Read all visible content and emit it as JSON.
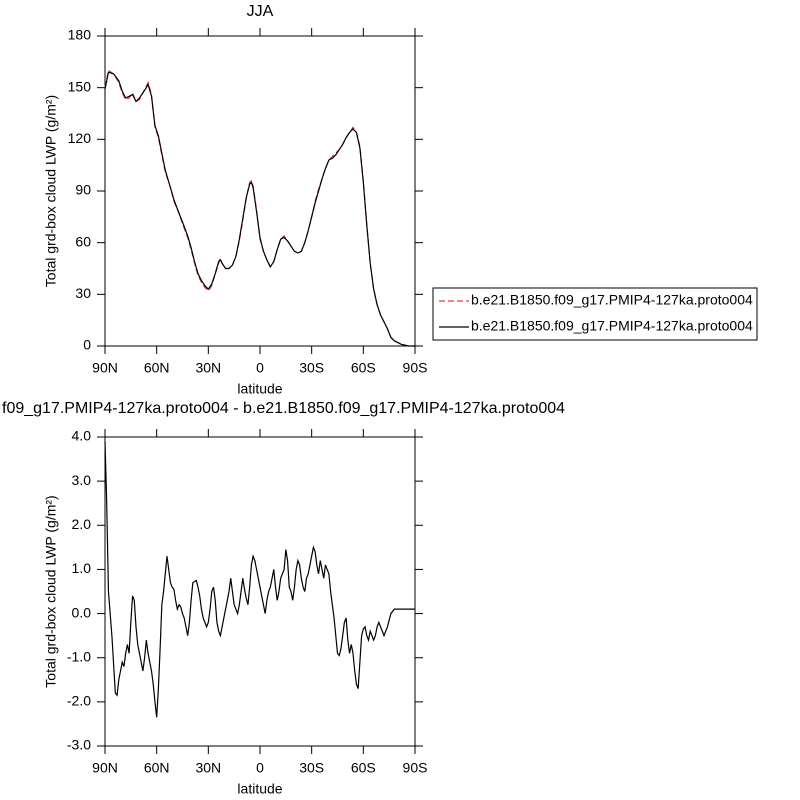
{
  "chart_data": [
    {
      "type": "line",
      "title": "JJA",
      "xlabel": "latitude",
      "ylabel": "Total grd-box cloud LWP (g/m²)",
      "xlim": [
        90,
        -90
      ],
      "xticks": [
        {
          "value": 90,
          "label": "90N"
        },
        {
          "value": 60,
          "label": "60N"
        },
        {
          "value": 30,
          "label": "30N"
        },
        0,
        {
          "value": -30,
          "label": "30S"
        },
        {
          "value": -60,
          "label": "60S"
        },
        {
          "value": -90,
          "label": "90S"
        }
      ],
      "ylim": [
        0,
        180
      ],
      "yticks": [
        0,
        30,
        60,
        90,
        120,
        150,
        180
      ],
      "legend": "right",
      "x": [
        90,
        88,
        85,
        82,
        80,
        78,
        76,
        74,
        72,
        70,
        68,
        66,
        65,
        63,
        61,
        59,
        57,
        55,
        52,
        50,
        47,
        45,
        42,
        40,
        38,
        36,
        34,
        32,
        30,
        28,
        26,
        24,
        23,
        22,
        20,
        18,
        16,
        14,
        12,
        10,
        8,
        6,
        5,
        4,
        2,
        0,
        -2,
        -4,
        -6,
        -8,
        -10,
        -12,
        -14,
        -16,
        -18,
        -20,
        -22,
        -24,
        -26,
        -28,
        -30,
        -32,
        -34,
        -36,
        -38,
        -40,
        -42,
        -44,
        -46,
        -48,
        -50,
        -52,
        -54,
        -56,
        -58,
        -60,
        -62,
        -64,
        -66,
        -68,
        -70,
        -72,
        -74,
        -76,
        -78,
        -80,
        -82,
        -84,
        -86,
        -88,
        -90
      ],
      "series": [
        {
          "name": "b.e21.B1850.f09_g17.PMIP4-127ka.proto004",
          "color": "#e8383d",
          "linestyle": "dashed",
          "values": [
            150,
            160,
            158,
            153,
            147,
            143,
            144,
            147,
            142,
            143,
            147,
            151,
            153,
            146,
            127,
            121,
            111,
            101,
            92,
            84,
            77,
            71,
            63,
            56,
            48,
            41,
            37,
            34,
            32,
            35,
            42,
            48,
            51,
            48,
            45,
            45,
            47,
            52,
            61,
            73,
            86,
            95,
            96,
            93,
            79,
            62,
            55,
            50,
            46,
            49,
            56,
            62,
            64,
            61,
            58,
            55,
            54,
            55,
            60,
            67,
            75,
            84,
            91,
            97,
            103,
            108,
            110,
            112,
            114,
            117,
            121,
            124,
            127,
            124,
            116,
            96,
            71,
            48,
            33,
            24,
            18,
            14,
            10,
            5,
            3,
            2,
            1,
            0.5,
            0,
            0,
            0
          ]
        },
        {
          "name": "b.e21.B1850.f09_g17.PMIP4-127ka.proto004",
          "color": "#000000",
          "linestyle": "solid",
          "values": [
            149,
            159,
            158,
            154,
            148,
            144,
            145,
            146,
            142,
            144,
            147,
            150,
            152,
            145,
            128,
            122,
            112,
            102,
            92,
            85,
            77,
            72,
            64,
            57,
            49,
            42,
            38,
            35,
            33,
            36,
            42,
            49,
            50,
            48,
            45,
            45,
            47,
            52,
            62,
            74,
            86,
            94,
            95,
            92,
            78,
            63,
            55,
            50,
            46,
            49,
            56,
            62,
            63,
            61,
            58,
            55,
            54,
            55,
            60,
            67,
            75,
            83,
            90,
            97,
            103,
            108,
            109,
            111,
            114,
            117,
            121,
            124,
            126,
            124,
            115,
            95,
            70,
            48,
            33,
            24,
            18,
            14,
            10,
            5,
            3,
            2,
            1,
            0.5,
            0,
            0,
            0
          ]
        }
      ]
    },
    {
      "type": "line",
      "title": "f09_g17.PMIP4-127ka.proto004 - b.e21.B1850.f09_g17.PMIP4-127ka.proto004",
      "xlabel": "latitude",
      "ylabel": "Total grd-box cloud LWP (g/m²)",
      "xlim": [
        90,
        -90
      ],
      "xticks": [
        {
          "value": 90,
          "label": "90N"
        },
        {
          "value": 60,
          "label": "60N"
        },
        {
          "value": 30,
          "label": "30N"
        },
        0,
        {
          "value": -30,
          "label": "30S"
        },
        {
          "value": -60,
          "label": "60S"
        },
        {
          "value": -90,
          "label": "90S"
        }
      ],
      "ylim": [
        -3,
        4
      ],
      "yticks": [
        {
          "value": -3,
          "label": "-3.0"
        },
        {
          "value": -2,
          "label": "-2.0"
        },
        {
          "value": -1,
          "label": "-1.0"
        },
        {
          "value": 0,
          "label": "0.0"
        },
        {
          "value": 1,
          "label": "1.0"
        },
        {
          "value": 2,
          "label": "2.0"
        },
        {
          "value": 3,
          "label": "3.0"
        },
        {
          "value": 4,
          "label": "4.0"
        }
      ],
      "color": "#000000",
      "x": [
        90,
        89,
        88,
        86,
        84,
        83,
        82,
        80,
        79,
        78,
        77,
        76,
        75,
        74,
        73,
        72,
        71,
        70,
        69,
        68,
        67,
        66,
        65,
        64,
        63,
        62,
        61,
        60,
        59,
        58,
        57,
        56,
        55,
        54,
        53,
        52,
        51,
        50,
        49,
        48,
        47,
        46,
        45,
        44,
        43,
        42,
        41,
        40,
        39,
        37,
        36,
        35,
        34,
        33,
        32,
        31,
        30,
        29,
        28,
        27,
        26,
        25,
        24,
        23,
        22,
        21,
        20,
        19,
        18,
        17,
        16,
        15,
        14,
        13,
        12,
        11,
        10,
        9,
        8,
        7,
        6,
        5,
        4,
        3,
        2,
        1,
        0,
        -2,
        -3,
        -4,
        -5,
        -6,
        -7,
        -8,
        -9,
        -10,
        -11,
        -12,
        -14,
        -15,
        -16,
        -17,
        -18,
        -19,
        -20,
        -21,
        -22,
        -23,
        -24,
        -25,
        -26,
        -27,
        -28,
        -29,
        -30,
        -31,
        -32,
        -33,
        -34,
        -35,
        -36,
        -37,
        -38,
        -39,
        -40,
        -41,
        -42,
        -43,
        -44,
        -45,
        -46,
        -47,
        -48,
        -49,
        -50,
        -51,
        -52,
        -53,
        -54,
        -55,
        -56,
        -57,
        -58,
        -59,
        -60,
        -61,
        -62,
        -63,
        -64,
        -65,
        -66,
        -67,
        -68,
        -69,
        -70,
        -71,
        -72,
        -74,
        -76,
        -78,
        -80,
        -90
      ],
      "values": [
        3.9,
        2.5,
        0.5,
        -0.5,
        -1.8,
        -1.85,
        -1.5,
        -1.1,
        -1.2,
        -0.9,
        -0.7,
        -0.9,
        -0.2,
        0.4,
        0.3,
        -0.3,
        -0.7,
        -0.9,
        -1.1,
        -1.3,
        -1.0,
        -0.6,
        -0.9,
        -1.1,
        -1.3,
        -1.6,
        -2.0,
        -2.35,
        -1.7,
        -0.8,
        0.2,
        0.5,
        0.9,
        1.3,
        1.0,
        0.7,
        0.6,
        0.55,
        0.3,
        0.1,
        0.2,
        0.15,
        0.0,
        -0.1,
        -0.3,
        -0.5,
        -0.2,
        0.3,
        0.7,
        0.75,
        0.6,
        0.4,
        0.1,
        -0.1,
        -0.2,
        -0.3,
        -0.2,
        0.1,
        0.5,
        0.6,
        0.3,
        -0.2,
        -0.4,
        -0.5,
        -0.3,
        -0.1,
        0.1,
        0.3,
        0.5,
        0.8,
        0.5,
        0.2,
        0.1,
        0.0,
        0.2,
        0.5,
        0.8,
        0.55,
        0.35,
        0.2,
        0.6,
        1.1,
        1.3,
        1.2,
        1.0,
        0.8,
        0.6,
        0.2,
        0.0,
        0.3,
        0.5,
        0.6,
        0.8,
        1.0,
        0.6,
        0.3,
        0.5,
        0.8,
        1.0,
        1.45,
        1.2,
        0.6,
        0.5,
        0.3,
        0.6,
        1.0,
        1.2,
        1.1,
        0.8,
        0.6,
        0.5,
        0.8,
        0.9,
        1.1,
        1.3,
        1.5,
        1.4,
        1.1,
        0.9,
        1.2,
        1.0,
        0.8,
        1.1,
        1.0,
        0.9,
        0.5,
        0.2,
        -0.1,
        -0.5,
        -0.9,
        -0.95,
        -0.8,
        -0.5,
        -0.2,
        -0.1,
        -0.6,
        -0.9,
        -0.7,
        -0.9,
        -1.3,
        -1.6,
        -1.7,
        -1.1,
        -0.5,
        -0.35,
        -0.3,
        -0.5,
        -0.6,
        -0.4,
        -0.5,
        -0.6,
        -0.5,
        -0.3,
        -0.2,
        -0.3,
        -0.4,
        -0.5,
        -0.3,
        0.0,
        0.1,
        0.1,
        0.1
      ]
    }
  ]
}
